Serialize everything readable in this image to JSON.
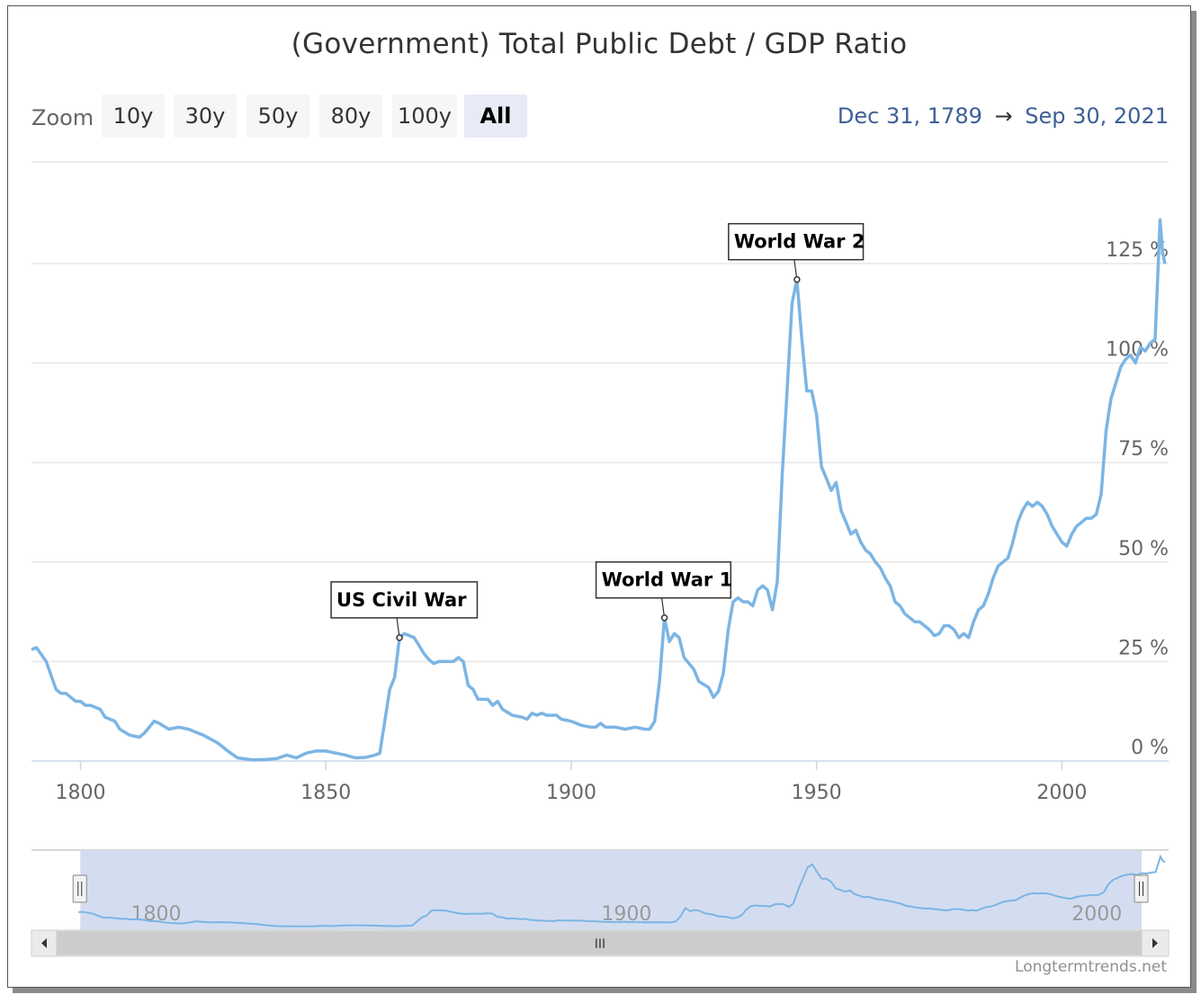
{
  "header": {
    "title": "(Government) Total Public Debt / GDP Ratio",
    "zoom_label": "Zoom",
    "zoom_buttons": [
      "10y",
      "30y",
      "50y",
      "80y",
      "100y",
      "All"
    ],
    "active_zoom": "All",
    "range_from": "Dec 31, 1789",
    "range_arrow": "→",
    "range_to": "Sep 30, 2021"
  },
  "footer": {
    "credit": "Longtermtrends.net"
  },
  "scrollbar": {
    "grip_symbol": "III",
    "left_arrow": "◂",
    "right_arrow": "▸"
  },
  "colors": {
    "line": "#7cb5e4",
    "navigator_fill": "#cfd9ee",
    "range_text": "#3d5f96"
  },
  "chart_data": {
    "type": "line",
    "title": "(Government) Total Public Debt / GDP Ratio",
    "xlabel": "",
    "ylabel": "",
    "x_ticks": [
      1800,
      1850,
      1900,
      1950,
      2000
    ],
    "y_ticks": [
      "0 %",
      "25 %",
      "50 %",
      "75 %",
      "100 %",
      "125 %"
    ],
    "ylim": [
      0,
      125
    ],
    "grid": true,
    "annotations": [
      {
        "label": "US Civil War",
        "x": 1865,
        "y": 31
      },
      {
        "label": "World War 1",
        "x": 1919,
        "y": 36
      },
      {
        "label": "World War 2",
        "x": 1946,
        "y": 121
      }
    ],
    "navigator_ticks": [
      "1800",
      "1900",
      "2000"
    ],
    "series": [
      {
        "values": [
          [
            1790,
            28
          ],
          [
            1791,
            28.5
          ],
          [
            1793,
            25
          ],
          [
            1795,
            18
          ],
          [
            1796,
            17
          ],
          [
            1797,
            17
          ],
          [
            1799,
            15
          ],
          [
            1800,
            15
          ],
          [
            1801,
            14
          ],
          [
            1802,
            14
          ],
          [
            1803,
            13.5
          ],
          [
            1804,
            13
          ],
          [
            1805,
            11
          ],
          [
            1806,
            10.5
          ],
          [
            1807,
            10
          ],
          [
            1808,
            8
          ],
          [
            1810,
            6.5
          ],
          [
            1812,
            6
          ],
          [
            1813,
            7
          ],
          [
            1815,
            10
          ],
          [
            1816,
            9.5
          ],
          [
            1818,
            8
          ],
          [
            1820,
            8.5
          ],
          [
            1822,
            8
          ],
          [
            1825,
            6.5
          ],
          [
            1828,
            4.5
          ],
          [
            1830,
            2.5
          ],
          [
            1832,
            0.8
          ],
          [
            1835,
            0.3
          ],
          [
            1838,
            0.4
          ],
          [
            1840,
            0.6
          ],
          [
            1842,
            1.5
          ],
          [
            1844,
            0.8
          ],
          [
            1846,
            2
          ],
          [
            1848,
            2.5
          ],
          [
            1850,
            2.5
          ],
          [
            1852,
            2
          ],
          [
            1854,
            1.5
          ],
          [
            1856,
            0.8
          ],
          [
            1858,
            0.9
          ],
          [
            1860,
            1.5
          ],
          [
            1861,
            2
          ],
          [
            1862,
            10
          ],
          [
            1863,
            18
          ],
          [
            1864,
            21
          ],
          [
            1865,
            31
          ],
          [
            1866,
            32
          ],
          [
            1867,
            31.5
          ],
          [
            1868,
            31
          ],
          [
            1869,
            29
          ],
          [
            1870,
            27
          ],
          [
            1871,
            25.5
          ],
          [
            1872,
            24.5
          ],
          [
            1873,
            25
          ],
          [
            1875,
            25
          ],
          [
            1876,
            25
          ],
          [
            1877,
            26
          ],
          [
            1878,
            25
          ],
          [
            1879,
            19
          ],
          [
            1880,
            18
          ],
          [
            1881,
            15.5
          ],
          [
            1883,
            15.5
          ],
          [
            1884,
            14
          ],
          [
            1885,
            15
          ],
          [
            1886,
            13
          ],
          [
            1888,
            11.5
          ],
          [
            1890,
            11
          ],
          [
            1891,
            10.5
          ],
          [
            1892,
            12
          ],
          [
            1893,
            11.5
          ],
          [
            1894,
            12
          ],
          [
            1895,
            11.5
          ],
          [
            1897,
            11.5
          ],
          [
            1898,
            10.5
          ],
          [
            1900,
            10
          ],
          [
            1902,
            9
          ],
          [
            1904,
            8.5
          ],
          [
            1905,
            8.5
          ],
          [
            1906,
            9.5
          ],
          [
            1907,
            8.5
          ],
          [
            1909,
            8.5
          ],
          [
            1911,
            8
          ],
          [
            1913,
            8.5
          ],
          [
            1915,
            8
          ],
          [
            1916,
            8
          ],
          [
            1917,
            10
          ],
          [
            1918,
            20
          ],
          [
            1919,
            36
          ],
          [
            1920,
            30
          ],
          [
            1921,
            32
          ],
          [
            1922,
            31
          ],
          [
            1923,
            26
          ],
          [
            1925,
            23
          ],
          [
            1926,
            20
          ],
          [
            1928,
            18.5
          ],
          [
            1929,
            16
          ],
          [
            1930,
            17.5
          ],
          [
            1931,
            22
          ],
          [
            1932,
            33
          ],
          [
            1933,
            40
          ],
          [
            1934,
            41
          ],
          [
            1935,
            40
          ],
          [
            1936,
            40
          ],
          [
            1937,
            39
          ],
          [
            1938,
            43
          ],
          [
            1939,
            44
          ],
          [
            1940,
            43
          ],
          [
            1941,
            38
          ],
          [
            1942,
            45
          ],
          [
            1943,
            72
          ],
          [
            1944,
            93
          ],
          [
            1945,
            115
          ],
          [
            1946,
            121
          ],
          [
            1947,
            106
          ],
          [
            1948,
            93
          ],
          [
            1949,
            93
          ],
          [
            1950,
            87
          ],
          [
            1951,
            74
          ],
          [
            1952,
            71
          ],
          [
            1953,
            68
          ],
          [
            1954,
            70
          ],
          [
            1955,
            63
          ],
          [
            1956,
            60
          ],
          [
            1957,
            57
          ],
          [
            1958,
            58
          ],
          [
            1959,
            55
          ],
          [
            1960,
            53
          ],
          [
            1961,
            52
          ],
          [
            1962,
            50
          ],
          [
            1963,
            48.5
          ],
          [
            1964,
            46
          ],
          [
            1965,
            44
          ],
          [
            1966,
            40
          ],
          [
            1967,
            39
          ],
          [
            1968,
            37
          ],
          [
            1970,
            35
          ],
          [
            1971,
            35
          ],
          [
            1972,
            34
          ],
          [
            1973,
            33
          ],
          [
            1974,
            31.5
          ],
          [
            1975,
            32
          ],
          [
            1976,
            34
          ],
          [
            1977,
            34
          ],
          [
            1978,
            33
          ],
          [
            1979,
            31
          ],
          [
            1980,
            32
          ],
          [
            1981,
            31
          ],
          [
            1982,
            35
          ],
          [
            1983,
            38
          ],
          [
            1984,
            39
          ],
          [
            1985,
            42
          ],
          [
            1986,
            46
          ],
          [
            1987,
            49
          ],
          [
            1988,
            50
          ],
          [
            1989,
            51
          ],
          [
            1990,
            55
          ],
          [
            1991,
            60
          ],
          [
            1992,
            63
          ],
          [
            1993,
            65
          ],
          [
            1994,
            64
          ],
          [
            1995,
            65
          ],
          [
            1996,
            64
          ],
          [
            1997,
            62
          ],
          [
            1998,
            59
          ],
          [
            1999,
            57
          ],
          [
            2000,
            55
          ],
          [
            2001,
            54
          ],
          [
            2002,
            57
          ],
          [
            2003,
            59
          ],
          [
            2004,
            60
          ],
          [
            2005,
            61
          ],
          [
            2006,
            61
          ],
          [
            2007,
            62
          ],
          [
            2008,
            67
          ],
          [
            2009,
            83
          ],
          [
            2010,
            91
          ],
          [
            2011,
            95
          ],
          [
            2012,
            99
          ],
          [
            2013,
            101
          ],
          [
            2014,
            102
          ],
          [
            2015,
            100
          ],
          [
            2016,
            104
          ],
          [
            2017,
            103
          ],
          [
            2018,
            105
          ],
          [
            2019,
            106
          ],
          [
            2020,
            136
          ],
          [
            2020.5,
            128
          ],
          [
            2021,
            125
          ]
        ]
      }
    ]
  }
}
